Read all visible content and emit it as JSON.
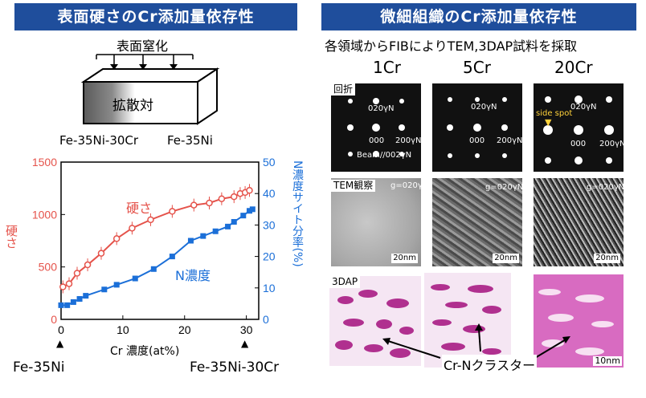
{
  "left": {
    "header": "表面硬さのCr添加量依存性",
    "diagram": {
      "surface_label": "表面窒化",
      "inner_label": "拡散対",
      "left_alloy": "Fe-35Ni-30Cr",
      "right_alloy": "Fe-35Ni"
    },
    "bottom_left": "Fe-35Ni",
    "bottom_right": "Fe-35Ni-30Cr"
  },
  "right": {
    "header": "微細組織のCr添加量依存性",
    "subtitle": "各領域からFIBによりTEM,3DAP試料を採取",
    "columns": [
      "1Cr",
      "5Cr",
      "20Cr"
    ],
    "row_labels": [
      "回折",
      "TEM観察",
      "3DAP"
    ],
    "diffraction": {
      "label_020": "020γN",
      "label_000": "000",
      "label_200": "200γN",
      "beam": "Beam//002γN",
      "side_spot": "side spot"
    },
    "tem_g": "g=020γN",
    "scale_20nm": "20nm",
    "scale_10nm": "10nm",
    "cluster_label": "Cr-Nクラスター"
  },
  "chart_data": {
    "type": "line",
    "xlabel": "Cr 濃度(at%)",
    "ylabel_left": "硬さ",
    "ylabel_right": "N濃度サイト分率(%)",
    "xlim": [
      0,
      32
    ],
    "ylim_left": [
      0,
      1500
    ],
    "ylim_right": [
      0,
      50
    ],
    "xticks": [
      0,
      10,
      20,
      30
    ],
    "yticks_left": [
      0,
      500,
      1000,
      1500
    ],
    "yticks_right": [
      0,
      10,
      20,
      30,
      40,
      50
    ],
    "series": [
      {
        "name": "硬さ",
        "axis": "left",
        "color": "#e5534b",
        "marker": "open-circle",
        "x": [
          0.3,
          1.3,
          2.6,
          4.3,
          6.5,
          9,
          11.5,
          14.5,
          18,
          21.5,
          24,
          26,
          28,
          29,
          29.8,
          30.5
        ],
        "values": [
          310,
          340,
          440,
          520,
          630,
          770,
          870,
          950,
          1030,
          1090,
          1110,
          1150,
          1170,
          1200,
          1210,
          1230
        ]
      },
      {
        "name": "N濃度",
        "axis": "right",
        "color": "#1b6fd8",
        "marker": "filled-square",
        "x": [
          0,
          1,
          2,
          3,
          4,
          7,
          9,
          12,
          15,
          18,
          21,
          23,
          25,
          27,
          28,
          29.5,
          30.5,
          31
        ],
        "values": [
          4.5,
          4.5,
          5.5,
          6.5,
          7.5,
          9.5,
          11,
          13,
          16,
          20,
          25,
          26.5,
          28,
          29.5,
          31,
          33,
          34.5,
          35
        ]
      }
    ]
  }
}
